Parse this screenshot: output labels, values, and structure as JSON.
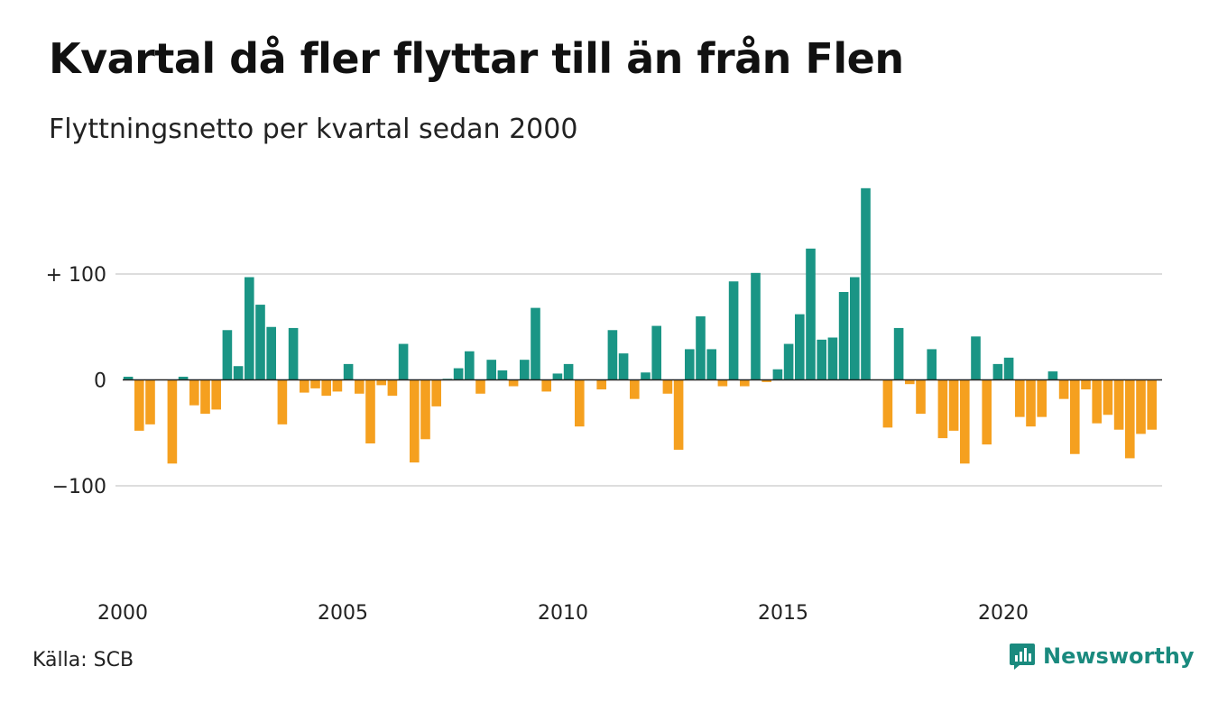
{
  "title": "Kvartal då fler flyttar till än från Flen",
  "subtitle": "Flyttningsnetto per kvartal sedan 2000",
  "source": "Källa: SCB",
  "brand": "Newsworthy",
  "colors": {
    "positive": "#1a9585",
    "negative": "#f5a01f",
    "grid": "#dddddd",
    "brand": "#1a8a7e"
  },
  "chart_data": {
    "type": "bar",
    "x_start": "2000 Q1",
    "frequency": "quarterly",
    "ylim": [
      -160,
      185
    ],
    "y_ticks": [
      {
        "value": 100,
        "label": "+ 100"
      },
      {
        "value": 0,
        "label": "0"
      },
      {
        "value": -100,
        "label": "−100"
      }
    ],
    "x_ticks": [
      "2000",
      "2005",
      "2010",
      "2015",
      "2020"
    ],
    "grid": true,
    "values": [
      3,
      -48,
      -42,
      0,
      -79,
      3,
      -24,
      -32,
      -28,
      47,
      13,
      97,
      71,
      50,
      -42,
      49,
      -12,
      -8,
      -15,
      -11,
      15,
      -13,
      -60,
      -5,
      -15,
      34,
      -78,
      -56,
      -25,
      1,
      11,
      27,
      -13,
      19,
      9,
      -6,
      19,
      68,
      -11,
      6,
      15,
      -44,
      0,
      -9,
      47,
      25,
      -18,
      7,
      51,
      -13,
      -66,
      29,
      60,
      29,
      -6,
      93,
      -6,
      101,
      -2,
      10,
      34,
      62,
      124,
      38,
      40,
      83,
      97,
      181,
      0,
      -45,
      49,
      -4,
      -32,
      29,
      -55,
      -48,
      -79,
      41,
      -61,
      15,
      21,
      -35,
      -44,
      -35,
      8,
      -18,
      -70,
      -9,
      -41,
      -33,
      -47,
      -74,
      -51,
      -47
    ]
  }
}
